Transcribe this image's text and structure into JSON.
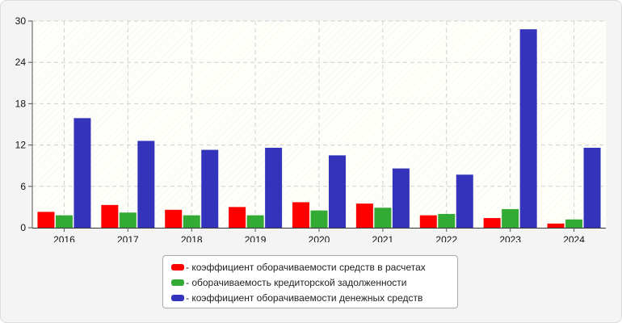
{
  "chart_data": {
    "type": "bar",
    "categories": [
      "2016",
      "2017",
      "2018",
      "2019",
      "2020",
      "2021",
      "2022",
      "2023",
      "2024"
    ],
    "series": [
      {
        "name": "- коэффициент оборачиваемости средств в расчетах",
        "color": "#ff0000",
        "values": [
          2.3,
          3.3,
          2.6,
          3.0,
          3.7,
          3.5,
          1.8,
          1.4,
          0.6
        ]
      },
      {
        "name": "- оборачиваемость кредиторской задолженности",
        "color": "#33aa33",
        "values": [
          1.8,
          2.2,
          1.8,
          1.8,
          2.5,
          2.9,
          2.0,
          2.7,
          1.2
        ]
      },
      {
        "name": "- коэффициент оборачиваемости денежных средств",
        "color": "#3333bb",
        "values": [
          15.9,
          12.6,
          11.3,
          11.6,
          10.5,
          8.6,
          7.7,
          28.8,
          11.6
        ]
      }
    ],
    "yticks": [
      0,
      6,
      12,
      18,
      24,
      30
    ],
    "ylim": [
      0,
      30
    ],
    "title": "",
    "xlabel": "",
    "ylabel": "",
    "grid": true,
    "legend_position": "bottom"
  }
}
